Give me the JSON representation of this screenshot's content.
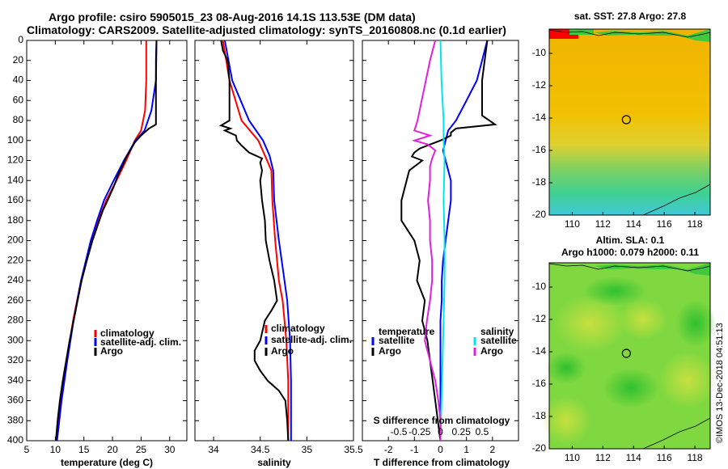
{
  "header": {
    "line1": "Argo profile: csiro 5905015_23 08-Aug-2016 14.1S 113.53E (DM data)",
    "line2": "Climatology: CARS2009. Satellite-adjusted climatology: synTS_20160808.nc (0.1d earlier)"
  },
  "colors": {
    "climatology": "#ff0000",
    "satellite": "#0000ff",
    "argo": "#000000",
    "s_satellite": "#00e5ee",
    "s_argo": "#e020e0"
  },
  "chart_data": [
    {
      "type": "line",
      "name": "temperature-panel",
      "xlabel": "temperature (deg C)",
      "xlim": [
        5,
        33
      ],
      "ylim": [
        0,
        400
      ],
      "y_reversed": true,
      "xticks": [
        5,
        10,
        15,
        20,
        25,
        30
      ],
      "yticks": [
        0,
        20,
        40,
        60,
        80,
        100,
        120,
        140,
        160,
        180,
        200,
        220,
        240,
        260,
        280,
        300,
        320,
        340,
        360,
        380,
        400
      ],
      "legend": [
        "climatology",
        "satellite-adj. clim.",
        "Argo"
      ],
      "series": [
        {
          "name": "climatology",
          "depth": [
            0,
            40,
            70,
            90,
            100,
            120,
            140,
            160,
            180,
            200,
            240,
            280,
            320,
            360,
            400
          ],
          "values": [
            25.9,
            25.9,
            25.7,
            25.0,
            23.9,
            22.4,
            20.7,
            18.9,
            17.5,
            16.3,
            14.5,
            13.1,
            12.0,
            11.0,
            10.1
          ]
        },
        {
          "name": "satellite-adj. clim.",
          "depth": [
            0,
            40,
            70,
            90,
            100,
            120,
            140,
            160,
            180,
            200,
            240,
            280,
            320,
            360,
            400
          ],
          "values": [
            27.7,
            27.6,
            26.8,
            25.6,
            24.0,
            22.0,
            20.2,
            18.5,
            17.3,
            16.2,
            14.5,
            13.2,
            12.1,
            11.1,
            10.3
          ]
        },
        {
          "name": "Argo",
          "depth": [
            0,
            20,
            40,
            60,
            75,
            84,
            88,
            95,
            102,
            110,
            118,
            126,
            134,
            145,
            158,
            170,
            185,
            200,
            220,
            240,
            260,
            280,
            300,
            320,
            340,
            360,
            380,
            400
          ],
          "values": [
            27.7,
            27.6,
            27.6,
            27.6,
            27.6,
            27.6,
            26.4,
            25.0,
            23.9,
            23.1,
            22.3,
            21.7,
            21.0,
            20.3,
            19.3,
            18.3,
            17.4,
            16.5,
            15.5,
            14.6,
            13.9,
            13.2,
            12.5,
            11.9,
            11.3,
            10.8,
            10.4,
            10.1
          ]
        }
      ]
    },
    {
      "type": "line",
      "name": "salinity-panel",
      "xlabel": "salinity",
      "xlim": [
        33.8,
        35.5
      ],
      "ylim": [
        0,
        400
      ],
      "y_reversed": true,
      "xticks": [
        34,
        34.5,
        35,
        35.5
      ],
      "xtick_labels": [
        "34",
        "34.5",
        "35",
        "35.5"
      ],
      "legend": [
        "climatology",
        "satellite-adj. clim.",
        "Argo"
      ],
      "series": [
        {
          "name": "climatology",
          "depth": [
            0,
            40,
            80,
            100,
            115,
            130,
            160,
            200,
            240,
            260,
            300,
            340,
            380,
            400
          ],
          "values": [
            34.1,
            34.17,
            34.3,
            34.48,
            34.55,
            34.62,
            34.63,
            34.66,
            34.7,
            34.74,
            34.78,
            34.8,
            34.8,
            34.8
          ]
        },
        {
          "name": "satellite-adj. clim.",
          "depth": [
            0,
            40,
            80,
            100,
            115,
            130,
            160,
            200,
            240,
            260,
            300,
            340,
            380,
            400
          ],
          "values": [
            34.12,
            34.2,
            34.38,
            34.53,
            34.6,
            34.64,
            34.65,
            34.7,
            34.76,
            34.79,
            34.82,
            34.83,
            34.83,
            34.83
          ]
        },
        {
          "name": "Argo",
          "depth": [
            0,
            10,
            20,
            40,
            60,
            80,
            85,
            88,
            90,
            95,
            100,
            105,
            112,
            118,
            122,
            130,
            140,
            160,
            180,
            200,
            220,
            240,
            260,
            270,
            280,
            300,
            310,
            320,
            330,
            340,
            350,
            360,
            380,
            400
          ],
          "values": [
            34.08,
            34.1,
            34.15,
            34.17,
            34.17,
            34.17,
            34.08,
            34.18,
            34.12,
            34.24,
            34.25,
            34.3,
            34.38,
            34.52,
            34.5,
            34.52,
            34.5,
            34.52,
            34.55,
            34.56,
            34.6,
            34.65,
            34.68,
            34.62,
            34.55,
            34.5,
            34.44,
            34.44,
            34.5,
            34.58,
            34.7,
            34.77,
            34.79,
            34.8
          ]
        }
      ]
    },
    {
      "type": "line",
      "name": "difference-panel",
      "xlabel": "T difference from climatology",
      "xlim": [
        -3,
        3
      ],
      "ylim": [
        0,
        400
      ],
      "y_reversed": true,
      "xticks": [
        -2,
        -1,
        0,
        1,
        2
      ],
      "secondary_xlabel": "S difference from climatology",
      "secondary_xtick_labels": [
        "-0.5",
        "-0.25",
        "0",
        "0.25",
        "0.5"
      ],
      "legend_temperature_title": "temperature",
      "legend_salinity_title": "salinity",
      "legend": [
        "satellite",
        "Argo",
        "satellite",
        "Argo"
      ],
      "series": [
        {
          "name": "T satellite",
          "depth": [
            0,
            20,
            40,
            60,
            80,
            90,
            100,
            110,
            120,
            140,
            160,
            180,
            200,
            220,
            240,
            260,
            280,
            300,
            320,
            340,
            360,
            380,
            400
          ],
          "values": [
            1.8,
            1.6,
            1.4,
            1.0,
            0.6,
            0.3,
            0.2,
            0.1,
            0.2,
            0.4,
            0.4,
            0.3,
            0.2,
            0.1,
            0.05,
            0.05,
            0.0,
            0.0,
            0.0,
            0.0,
            0.0,
            0.0,
            0.0
          ]
        },
        {
          "name": "T Argo",
          "depth": [
            0,
            20,
            40,
            60,
            75,
            84,
            88,
            92,
            95,
            100,
            104,
            108,
            112,
            116,
            120,
            130,
            140,
            160,
            180,
            200,
            220,
            240,
            260,
            280,
            300,
            320,
            340,
            360,
            380,
            400
          ],
          "values": [
            1.8,
            1.7,
            1.6,
            1.6,
            1.6,
            2.1,
            0.6,
            0.4,
            0.4,
            0.0,
            -0.4,
            -0.8,
            -1.0,
            -1.1,
            -0.7,
            -1.2,
            -1.3,
            -1.5,
            -1.5,
            -1.0,
            -0.8,
            -0.9,
            -0.6,
            -0.7,
            -0.5,
            -0.4,
            -0.3,
            -0.2,
            -0.1,
            0.0
          ]
        },
        {
          "name": "S satellite",
          "depth": [
            0,
            40,
            80,
            100,
            120,
            160,
            200,
            240,
            280,
            320,
            360,
            400
          ],
          "values": [
            0.0,
            0.01,
            0.03,
            0.03,
            0.04,
            0.03,
            0.04,
            0.04,
            0.03,
            0.02,
            0.01,
            0.0
          ]
        },
        {
          "name": "S Argo",
          "depth": [
            0,
            20,
            40,
            60,
            80,
            90,
            95,
            100,
            104,
            110,
            118,
            126,
            140,
            160,
            180,
            200,
            220,
            240,
            260,
            280,
            300,
            320,
            340,
            360,
            380,
            400
          ],
          "values": [
            -0.05,
            -0.1,
            -0.14,
            -0.18,
            -0.22,
            -0.25,
            -0.1,
            -0.25,
            -0.12,
            -0.05,
            -0.08,
            -0.1,
            -0.1,
            -0.12,
            -0.1,
            -0.1,
            -0.08,
            -0.08,
            -0.1,
            -0.13,
            -0.15,
            -0.1,
            -0.05,
            -0.02,
            0.0,
            0.0
          ]
        }
      ]
    },
    {
      "type": "heatmap",
      "name": "sst-map",
      "title": "sat. SST: 27.8 Argo: 27.8",
      "xlim": [
        108.5,
        119
      ],
      "ylim": [
        -20,
        -8.5
      ],
      "xticks": [
        110,
        112,
        114,
        116,
        118
      ],
      "yticks": [
        -10,
        -12,
        -14,
        -16,
        -18,
        -20
      ],
      "profile_location": [
        113.53,
        -14.1
      ]
    },
    {
      "type": "heatmap",
      "name": "sla-map",
      "title": "Altim. SLA: 0.1",
      "subtitle": "Argo h1000: 0.079 h2000: 0.11",
      "xlim": [
        108.5,
        119
      ],
      "ylim": [
        -20,
        -8.5
      ],
      "xticks": [
        110,
        112,
        114,
        116,
        118
      ],
      "yticks": [
        -10,
        -12,
        -14,
        -16,
        -18,
        -20
      ],
      "profile_location": [
        113.53,
        -14.1
      ]
    }
  ],
  "credit": "©IMOS 13-Dec-2018 04:51:13"
}
